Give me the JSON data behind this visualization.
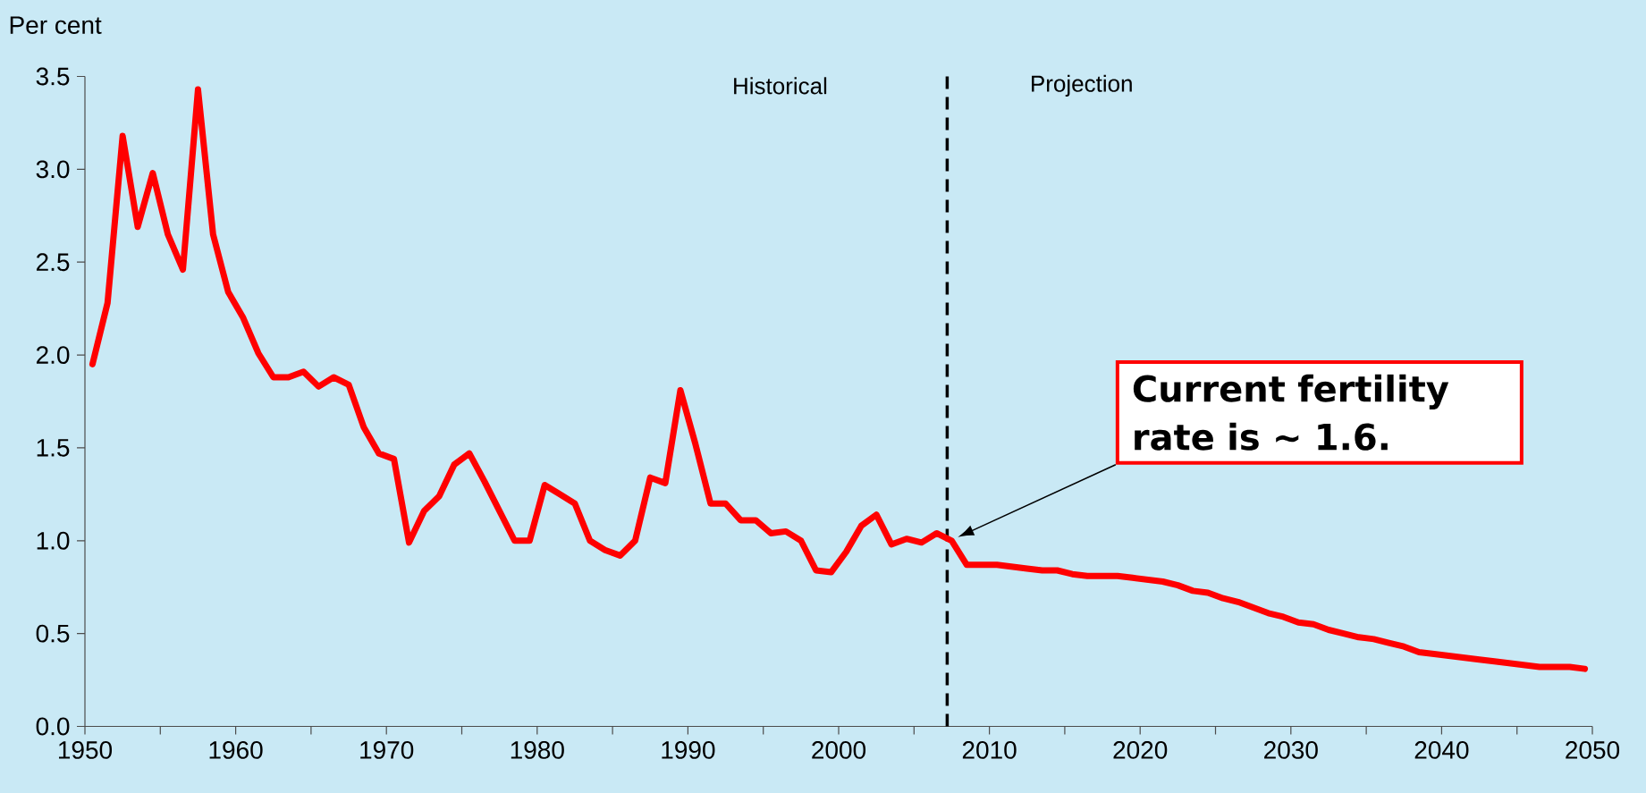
{
  "chart_data": {
    "type": "line",
    "ylabel": "Per cent",
    "x": [
      1950.5,
      1951.5,
      1952.5,
      1953.5,
      1954.5,
      1955.5,
      1956.5,
      1957.5,
      1958.5,
      1959.5,
      1960.5,
      1961.5,
      1962.5,
      1963.5,
      1964.5,
      1965.5,
      1966.5,
      1967.5,
      1968.5,
      1969.5,
      1970.5,
      1971.5,
      1972.5,
      1973.5,
      1974.5,
      1975.5,
      1976.5,
      1977.5,
      1978.5,
      1979.5,
      1980.5,
      1981.5,
      1982.5,
      1983.5,
      1984.5,
      1985.5,
      1986.5,
      1987.5,
      1988.5,
      1989.5,
      1990.5,
      1991.5,
      1992.5,
      1993.5,
      1994.5,
      1995.5,
      1996.5,
      1997.5,
      1998.5,
      1999.5,
      2000.5,
      2001.5,
      2002.5,
      2003.5,
      2004.5,
      2005.5,
      2006.5,
      2007.5,
      2008.5,
      2009.5,
      2010.5,
      2011.5,
      2012.5,
      2013.5,
      2014.5,
      2015.5,
      2016.5,
      2017.5,
      2018.5,
      2019.5,
      2020.5,
      2021.5,
      2022.5,
      2023.5,
      2024.5,
      2025.5,
      2026.5,
      2027.5,
      2028.5,
      2029.5,
      2030.5,
      2031.5,
      2032.5,
      2033.5,
      2034.5,
      2035.5,
      2036.5,
      2037.5,
      2038.5,
      2039.5,
      2040.5,
      2041.5,
      2042.5,
      2043.5,
      2044.5,
      2045.5,
      2046.5,
      2047.5,
      2048.5,
      2049.5
    ],
    "series": [
      {
        "color": "#ff0000",
        "values": [
          1.95,
          2.28,
          3.18,
          2.69,
          2.98,
          2.65,
          2.46,
          3.43,
          2.65,
          2.34,
          2.2,
          2.01,
          1.88,
          1.88,
          1.91,
          1.83,
          1.88,
          1.84,
          1.61,
          1.47,
          1.44,
          0.99,
          1.16,
          1.24,
          1.41,
          1.47,
          1.32,
          1.16,
          1.0,
          1.0,
          1.3,
          1.25,
          1.2,
          1.0,
          0.95,
          0.92,
          1.0,
          1.34,
          1.31,
          1.81,
          1.52,
          1.2,
          1.2,
          1.11,
          1.11,
          1.04,
          1.05,
          1.0,
          0.84,
          0.83,
          0.94,
          1.08,
          1.14,
          0.98,
          1.01,
          0.99,
          1.04,
          1.0,
          0.87,
          0.87,
          0.87,
          0.86,
          0.85,
          0.84,
          0.84,
          0.82,
          0.81,
          0.81,
          0.81,
          0.8,
          0.79,
          0.78,
          0.76,
          0.73,
          0.72,
          0.69,
          0.67,
          0.64,
          0.61,
          0.59,
          0.56,
          0.55,
          0.52,
          0.5,
          0.48,
          0.47,
          0.45,
          0.43,
          0.4,
          0.39,
          0.38,
          0.37,
          0.36,
          0.35,
          0.34,
          0.33,
          0.32,
          0.32,
          0.32,
          0.31
        ]
      }
    ],
    "xlim": [
      1950,
      2050
    ],
    "ylim": [
      0,
      3.5
    ],
    "xticks": [
      1950,
      {
        "value": 1955,
        "label": null
      },
      1960,
      {
        "value": 1965,
        "label": null
      },
      1970,
      {
        "value": 1975,
        "label": null
      },
      1980,
      {
        "value": 1985,
        "label": null
      },
      1990,
      {
        "value": 1995,
        "label": null
      },
      2000,
      {
        "value": 2005,
        "label": null
      },
      2010,
      {
        "value": 2015,
        "label": null
      },
      2020,
      {
        "value": 2025,
        "label": null
      },
      2030,
      {
        "value": 2035,
        "label": null
      },
      2040,
      {
        "value": 2045,
        "label": null
      },
      2050
    ],
    "yticks": [
      {
        "value": 0,
        "label": "0.0"
      },
      0.5,
      {
        "value": 1,
        "label": "1.0"
      },
      1.5,
      {
        "value": 2,
        "label": "2.0"
      },
      2.5,
      {
        "value": 3,
        "label": "3.0"
      },
      3.5
    ],
    "ref_lines": [
      {
        "axis": "x",
        "value": 2007.2,
        "color": "#000000",
        "line_style": "dashed"
      }
    ],
    "annotations": [
      "Historical",
      "Projection",
      "Current fertility rate is ~ 1.6."
    ],
    "marker": "none",
    "line_style": "solid"
  }
}
